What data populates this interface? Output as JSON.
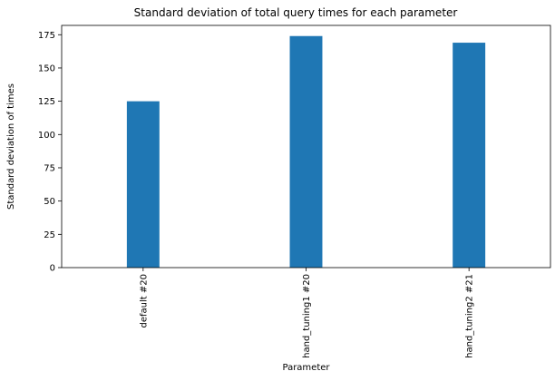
{
  "chart_data": {
    "type": "bar",
    "title": "Standard deviation of total query times for each parameter",
    "xlabel": "Parameter",
    "ylabel": "Standard deviation of times",
    "categories": [
      "default #20",
      "hand_tuning1 #20",
      "hand_tuning2 #21"
    ],
    "values": [
      125,
      174,
      169
    ],
    "ylim": [
      0,
      182
    ],
    "yticks": [
      0,
      25,
      50,
      75,
      100,
      125,
      150,
      175
    ],
    "grid": false,
    "legend": "none",
    "bar_color": "#1f77b4"
  }
}
